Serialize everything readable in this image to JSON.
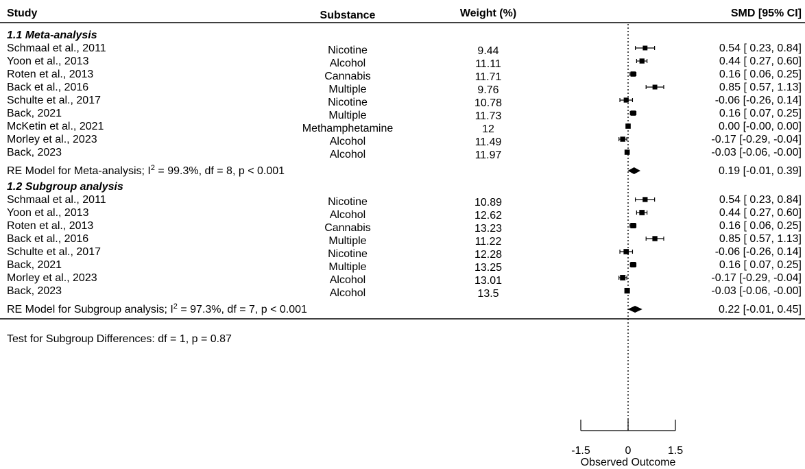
{
  "chart_data": {
    "type": "forest",
    "headers": {
      "study": "Study",
      "substance": "Substance",
      "weight": "Weight (%)",
      "effect": "SMD [95% CI]"
    },
    "groups": [
      {
        "title": "1.1 Meta-analysis",
        "studies": [
          {
            "study": "Schmaal et al., 2011",
            "substance": "Nicotine",
            "weight": "9.44",
            "est": 0.54,
            "lo": 0.23,
            "hi": 0.84,
            "ci_text": "0.54 [ 0.23,  0.84]"
          },
          {
            "study": "Yoon et al., 2013",
            "substance": "Alcohol",
            "weight": "11.11",
            "est": 0.44,
            "lo": 0.27,
            "hi": 0.6,
            "ci_text": "0.44 [ 0.27,  0.60]"
          },
          {
            "study": "Roten et al., 2013",
            "substance": "Cannabis",
            "weight": "11.71",
            "est": 0.16,
            "lo": 0.06,
            "hi": 0.25,
            "ci_text": "0.16 [ 0.06,  0.25]"
          },
          {
            "study": "Back et al., 2016",
            "substance": "Multiple",
            "weight": "9.76",
            "est": 0.85,
            "lo": 0.57,
            "hi": 1.13,
            "ci_text": "0.85 [ 0.57,  1.13]"
          },
          {
            "study": "Schulte et al., 2017",
            "substance": "Nicotine",
            "weight": "10.78",
            "est": -0.06,
            "lo": -0.26,
            "hi": 0.14,
            "ci_text": "-0.06 [-0.26,  0.14]"
          },
          {
            "study": "Back, 2021",
            "substance": "Multiple",
            "weight": "11.73",
            "est": 0.16,
            "lo": 0.07,
            "hi": 0.25,
            "ci_text": "0.16 [ 0.07,  0.25]"
          },
          {
            "study": "McKetin et al., 2021",
            "substance": "Methamphetamine",
            "weight": "12",
            "est": 0.0,
            "lo": -0.0,
            "hi": 0.0,
            "ci_text": "0.00 [-0.00,  0.00]"
          },
          {
            "study": "Morley et al., 2023",
            "substance": "Alcohol",
            "weight": "11.49",
            "est": -0.17,
            "lo": -0.29,
            "hi": -0.04,
            "ci_text": "-0.17 [-0.29, -0.04]"
          },
          {
            "study": "Back, 2023",
            "substance": "Alcohol",
            "weight": "11.97",
            "est": -0.03,
            "lo": -0.06,
            "hi": -0.0,
            "ci_text": "-0.03 [-0.06, -0.00]"
          }
        ],
        "summary": {
          "label_prefix": "RE Model for Meta-analysis; I",
          "label_sup": "2",
          "label_suffix": " = 99.3%, df = 8, p < 0.001",
          "est": 0.19,
          "lo": -0.01,
          "hi": 0.39,
          "ci_text": "0.19 [-0.01,  0.39]"
        }
      },
      {
        "title": "1.2 Subgroup analysis",
        "studies": [
          {
            "study": "Schmaal et al., 2011",
            "substance": "Nicotine",
            "weight": "10.89",
            "est": 0.54,
            "lo": 0.23,
            "hi": 0.84,
            "ci_text": "0.54 [ 0.23,  0.84]"
          },
          {
            "study": "Yoon et al., 2013",
            "substance": "Alcohol",
            "weight": "12.62",
            "est": 0.44,
            "lo": 0.27,
            "hi": 0.6,
            "ci_text": "0.44 [ 0.27,  0.60]"
          },
          {
            "study": "Roten et al., 2013",
            "substance": "Cannabis",
            "weight": "13.23",
            "est": 0.16,
            "lo": 0.06,
            "hi": 0.25,
            "ci_text": "0.16 [ 0.06,  0.25]"
          },
          {
            "study": "Back et al., 2016",
            "substance": "Multiple",
            "weight": "11.22",
            "est": 0.85,
            "lo": 0.57,
            "hi": 1.13,
            "ci_text": "0.85 [ 0.57,  1.13]"
          },
          {
            "study": "Schulte et al., 2017",
            "substance": "Nicotine",
            "weight": "12.28",
            "est": -0.06,
            "lo": -0.26,
            "hi": 0.14,
            "ci_text": "-0.06 [-0.26,  0.14]"
          },
          {
            "study": "Back, 2021",
            "substance": "Multiple",
            "weight": "13.25",
            "est": 0.16,
            "lo": 0.07,
            "hi": 0.25,
            "ci_text": "0.16 [ 0.07,  0.25]"
          },
          {
            "study": "Morley et al., 2023",
            "substance": "Alcohol",
            "weight": "13.01",
            "est": -0.17,
            "lo": -0.29,
            "hi": -0.04,
            "ci_text": "-0.17 [-0.29, -0.04]"
          },
          {
            "study": "Back, 2023",
            "substance": "Alcohol",
            "weight": "13.5",
            "est": -0.03,
            "lo": -0.06,
            "hi": -0.0,
            "ci_text": "-0.03 [-0.06, -0.00]"
          }
        ],
        "summary": {
          "label_prefix": "RE Model for Subgroup analysis; I",
          "label_sup": "2",
          "label_suffix": " = 97.3%, df = 7, p < 0.001",
          "est": 0.22,
          "lo": -0.01,
          "hi": 0.45,
          "ci_text": "0.22 [-0.01,  0.45]"
        }
      }
    ],
    "subgroup_test": "Test for Subgroup Differences: df = 1, p = 0.87",
    "x_axis": {
      "label": "Observed Outcome",
      "ticks": [
        -1.5,
        0,
        1.5
      ],
      "tick_labels": [
        "-1.5",
        "0",
        "1.5"
      ],
      "reference_line": 0
    }
  }
}
